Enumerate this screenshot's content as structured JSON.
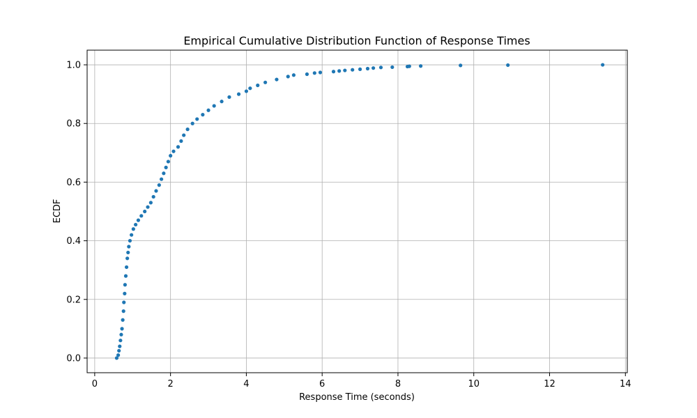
{
  "chart_data": {
    "type": "scatter",
    "title": "Empirical Cumulative Distribution Function of Response Times",
    "xlabel": "Response Time (seconds)",
    "ylabel": "ECDF",
    "xlim": [
      -0.2,
      14.05
    ],
    "ylim": [
      -0.05,
      1.05
    ],
    "xticks": [
      0,
      2,
      4,
      6,
      8,
      10,
      12,
      14
    ],
    "xtick_labels": [
      "0",
      "2",
      "4",
      "6",
      "8",
      "10",
      "12",
      "14"
    ],
    "yticks": [
      0.0,
      0.2,
      0.4,
      0.6,
      0.8,
      1.0
    ],
    "ytick_labels": [
      "0.0",
      "0.2",
      "0.4",
      "0.6",
      "0.8",
      "1.0"
    ],
    "grid": true,
    "marker_color": "#1f77b4",
    "points": [
      [
        0.58,
        0.0
      ],
      [
        0.62,
        0.01
      ],
      [
        0.64,
        0.025
      ],
      [
        0.66,
        0.04
      ],
      [
        0.68,
        0.06
      ],
      [
        0.7,
        0.08
      ],
      [
        0.72,
        0.1
      ],
      [
        0.74,
        0.13
      ],
      [
        0.76,
        0.16
      ],
      [
        0.77,
        0.19
      ],
      [
        0.79,
        0.22
      ],
      [
        0.8,
        0.25
      ],
      [
        0.82,
        0.28
      ],
      [
        0.84,
        0.31
      ],
      [
        0.86,
        0.34
      ],
      [
        0.88,
        0.36
      ],
      [
        0.9,
        0.38
      ],
      [
        0.93,
        0.4
      ],
      [
        0.97,
        0.42
      ],
      [
        1.02,
        0.44
      ],
      [
        1.08,
        0.455
      ],
      [
        1.15,
        0.47
      ],
      [
        1.23,
        0.485
      ],
      [
        1.32,
        0.5
      ],
      [
        1.4,
        0.515
      ],
      [
        1.48,
        0.53
      ],
      [
        1.55,
        0.55
      ],
      [
        1.62,
        0.57
      ],
      [
        1.7,
        0.59
      ],
      [
        1.76,
        0.61
      ],
      [
        1.82,
        0.63
      ],
      [
        1.88,
        0.65
      ],
      [
        1.94,
        0.67
      ],
      [
        2.0,
        0.69
      ],
      [
        2.08,
        0.705
      ],
      [
        2.2,
        0.72
      ],
      [
        2.28,
        0.74
      ],
      [
        2.35,
        0.76
      ],
      [
        2.45,
        0.78
      ],
      [
        2.58,
        0.8
      ],
      [
        2.7,
        0.815
      ],
      [
        2.85,
        0.83
      ],
      [
        3.0,
        0.845
      ],
      [
        3.15,
        0.86
      ],
      [
        3.35,
        0.875
      ],
      [
        3.55,
        0.89
      ],
      [
        3.8,
        0.9
      ],
      [
        4.0,
        0.91
      ],
      [
        4.1,
        0.92
      ],
      [
        4.3,
        0.93
      ],
      [
        4.5,
        0.94
      ],
      [
        4.8,
        0.95
      ],
      [
        5.1,
        0.96
      ],
      [
        5.25,
        0.965
      ],
      [
        5.6,
        0.968
      ],
      [
        5.8,
        0.972
      ],
      [
        5.95,
        0.974
      ],
      [
        6.3,
        0.977
      ],
      [
        6.45,
        0.979
      ],
      [
        6.6,
        0.981
      ],
      [
        6.8,
        0.983
      ],
      [
        7.0,
        0.985
      ],
      [
        7.2,
        0.987
      ],
      [
        7.35,
        0.989
      ],
      [
        7.55,
        0.991
      ],
      [
        7.85,
        0.992
      ],
      [
        8.25,
        0.994
      ],
      [
        8.3,
        0.995
      ],
      [
        8.6,
        0.996
      ],
      [
        9.65,
        0.998
      ],
      [
        10.9,
        0.999
      ],
      [
        13.4,
        1.0
      ]
    ]
  }
}
